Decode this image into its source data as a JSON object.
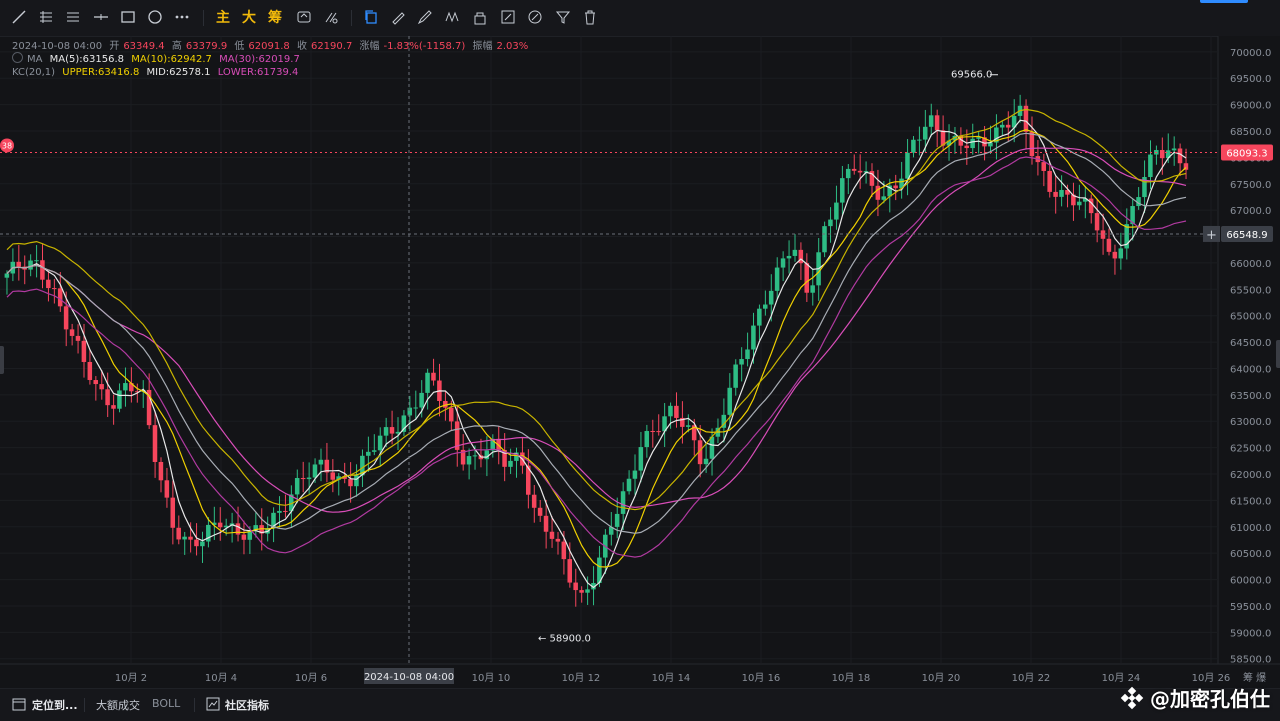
{
  "toolbar": {
    "tools": [
      "trend-line-icon",
      "horizontal-ray-icon",
      "parallel-lines-icon",
      "horizontal-line-icon",
      "rectangle-icon",
      "circle-icon",
      "more-icon"
    ],
    "text_tools": [
      "主",
      "大",
      "筹"
    ]
  },
  "ohlc": {
    "date": "2024-10-08 04:00",
    "open_label": "开",
    "open": "63349.4",
    "high_label": "高",
    "high": "63379.9",
    "low_label": "低",
    "low": "62091.8",
    "close_label": "收",
    "close": "62190.7",
    "change_label": "涨幅",
    "change": "-1.83%(-1158.7)",
    "amplitude_label": "振幅",
    "amplitude": "2.03%"
  },
  "ma_indicator": {
    "name": "MA",
    "ma5": "MA(5):63156.8",
    "ma10": "MA(10):62942.7",
    "ma30": "MA(30):62019.7"
  },
  "kc_indicator": {
    "name": "KC(20,1)",
    "upper": "UPPER:63416.8",
    "mid": "MID:62578.1",
    "lower": "LOWER:61739.4"
  },
  "price_tags": {
    "current": "68093.3",
    "crosshair": "66548.9",
    "left_marker": "38",
    "high_annotation": "69566.0",
    "low_annotation": "← 58900.0"
  },
  "crosshair_date": "2024-10-08 04:00",
  "right_axis_corner": "筹 爆",
  "bottom_bar": {
    "locate": "定位到...",
    "big_trade": "大额成交",
    "boll": "BOLL",
    "community": "社区指标"
  },
  "watermark": "@加密孔伯仕",
  "colors": {
    "up": "#2ebd85",
    "down": "#f6465d",
    "ma5": "#e8e8e8",
    "ma10": "#f0d000",
    "ma30": "#d84db8",
    "accent": "#2f8cff"
  },
  "chart_data": {
    "type": "candlestick",
    "y_ticks": [
      "70000.0",
      "69500.0",
      "69000.0",
      "68500.0",
      "68000.0",
      "67500.0",
      "67000.0",
      "66500.0",
      "66000.0",
      "65500.0",
      "65000.0",
      "64500.0",
      "64000.0",
      "63500.0",
      "63000.0",
      "62500.0",
      "62000.0",
      "61500.0",
      "61000.0",
      "60500.0",
      "60000.0",
      "59500.0",
      "59000.0",
      "58500.0"
    ],
    "x_ticks": [
      "10月 2",
      "10月 4",
      "10月 6",
      "10月 10",
      "10月 12",
      "10月 14",
      "10月 16",
      "10月 18",
      "10月 20",
      "10月 22",
      "10月 24",
      "10月 26"
    ],
    "ylim": [
      58400,
      70300
    ],
    "close_path": [
      65800,
      65900,
      65950,
      65600,
      64800,
      64100,
      63600,
      63400,
      63700,
      63400,
      62100,
      61100,
      60600,
      60700,
      61200,
      61000,
      60800,
      60900,
      61300,
      61800,
      62000,
      62100,
      61900,
      62000,
      62400,
      62700,
      63000,
      63400,
      63800,
      63200,
      62400,
      62300,
      62500,
      62200,
      62400,
      61200,
      60800,
      60200,
      59700,
      60200,
      61000,
      61700,
      62700,
      62900,
      63100,
      62900,
      62300,
      62800,
      63700,
      64500,
      65300,
      65800,
      66300,
      65400,
      66600,
      67300,
      67800,
      67600,
      67300,
      67500,
      68200,
      68800,
      68400,
      68200,
      68200,
      68400,
      68700,
      68800,
      67900,
      67500,
      67300,
      67100,
      66800,
      66100,
      66600,
      67400,
      68100,
      68200,
      67900
    ]
  }
}
